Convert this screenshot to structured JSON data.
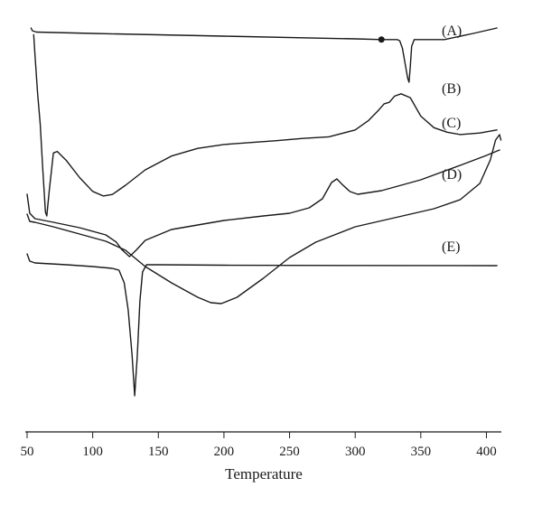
{
  "chart_data": {
    "type": "line",
    "xlabel": "Temperature",
    "ylabel": "",
    "xlim": [
      50,
      410
    ],
    "x_ticks": [
      50,
      100,
      150,
      200,
      250,
      300,
      350,
      400
    ],
    "grid": false,
    "series": [
      {
        "name": "(A)",
        "points": [
          [
            53,
            12
          ],
          [
            54,
            8
          ],
          [
            57,
            6
          ],
          [
            100,
            4
          ],
          [
            200,
            0
          ],
          [
            300,
            -4
          ],
          [
            320,
            -5
          ],
          [
            332,
            -5
          ],
          [
            334,
            -7
          ],
          [
            336,
            -18
          ],
          [
            338,
            -40
          ],
          [
            340,
            -62
          ],
          [
            341,
            -68
          ],
          [
            342,
            -45
          ],
          [
            343,
            -15
          ],
          [
            345,
            -5
          ],
          [
            350,
            -5
          ],
          [
            368,
            -5
          ],
          [
            390,
            4
          ],
          [
            408,
            12
          ]
        ],
        "marker": [
          320,
          -5
        ]
      },
      {
        "name": "(B)",
        "points": [
          [
            55,
            136
          ],
          [
            56,
            110
          ],
          [
            58,
            60
          ],
          [
            60,
            20
          ],
          [
            62,
            -40
          ],
          [
            64,
            -95
          ],
          [
            65,
            -100
          ],
          [
            67,
            -65
          ],
          [
            70,
            -18
          ],
          [
            73,
            -16
          ],
          [
            80,
            -28
          ],
          [
            90,
            -50
          ],
          [
            100,
            -68
          ],
          [
            108,
            -74
          ],
          [
            115,
            -72
          ],
          [
            125,
            -60
          ],
          [
            140,
            -40
          ],
          [
            160,
            -22
          ],
          [
            180,
            -12
          ],
          [
            200,
            -7
          ],
          [
            240,
            -2
          ],
          [
            260,
            1
          ],
          [
            280,
            3
          ],
          [
            300,
            12
          ],
          [
            310,
            24
          ],
          [
            318,
            38
          ],
          [
            322,
            46
          ],
          [
            326,
            48
          ],
          [
            330,
            56
          ],
          [
            335,
            59
          ],
          [
            342,
            54
          ],
          [
            350,
            30
          ],
          [
            360,
            15
          ],
          [
            370,
            9
          ],
          [
            380,
            6
          ],
          [
            395,
            8
          ],
          [
            408,
            12
          ]
        ]
      },
      {
        "name": "(C)",
        "points": [
          [
            50,
            17
          ],
          [
            52,
            -4
          ],
          [
            56,
            -10
          ],
          [
            70,
            -14
          ],
          [
            90,
            -20
          ],
          [
            110,
            -28
          ],
          [
            118,
            -36
          ],
          [
            122,
            -44
          ],
          [
            128,
            -52
          ],
          [
            133,
            -45
          ],
          [
            140,
            -34
          ],
          [
            160,
            -22
          ],
          [
            200,
            -12
          ],
          [
            230,
            -7
          ],
          [
            250,
            -4
          ],
          [
            265,
            2
          ],
          [
            275,
            12
          ],
          [
            282,
            30
          ],
          [
            286,
            34
          ],
          [
            290,
            28
          ],
          [
            296,
            20
          ],
          [
            302,
            17
          ],
          [
            320,
            21
          ],
          [
            350,
            33
          ],
          [
            380,
            49
          ],
          [
            400,
            60
          ],
          [
            410,
            66
          ]
        ]
      },
      {
        "name": "(D)",
        "points": [
          [
            50,
            18
          ],
          [
            52,
            10
          ],
          [
            56,
            9
          ],
          [
            70,
            4
          ],
          [
            90,
            -4
          ],
          [
            110,
            -12
          ],
          [
            125,
            -22
          ],
          [
            140,
            -40
          ],
          [
            160,
            -58
          ],
          [
            180,
            -74
          ],
          [
            190,
            -80
          ],
          [
            198,
            -81
          ],
          [
            210,
            -74
          ],
          [
            230,
            -53
          ],
          [
            250,
            -30
          ],
          [
            270,
            -13
          ],
          [
            300,
            4
          ],
          [
            330,
            14
          ],
          [
            360,
            24
          ],
          [
            380,
            34
          ],
          [
            395,
            52
          ],
          [
            403,
            78
          ],
          [
            407,
            100
          ],
          [
            410,
            106
          ],
          [
            411,
            100
          ]
        ]
      },
      {
        "name": "(E)",
        "points": [
          [
            50,
            12
          ],
          [
            52,
            4
          ],
          [
            56,
            2
          ],
          [
            80,
            0
          ],
          [
            100,
            -2
          ],
          [
            115,
            -4
          ],
          [
            120,
            -6
          ],
          [
            124,
            -20
          ],
          [
            127,
            -50
          ],
          [
            130,
            -100
          ],
          [
            132,
            -145
          ],
          [
            134,
            -100
          ],
          [
            136,
            -40
          ],
          [
            138,
            -8
          ],
          [
            141,
            0
          ],
          [
            150,
            0
          ],
          [
            200,
            -0.5
          ],
          [
            300,
            -0.8
          ],
          [
            408,
            -1
          ]
        ]
      }
    ],
    "annotations": [
      "(A)",
      "(B)",
      "(C)",
      "(D)",
      "(E)"
    ]
  }
}
